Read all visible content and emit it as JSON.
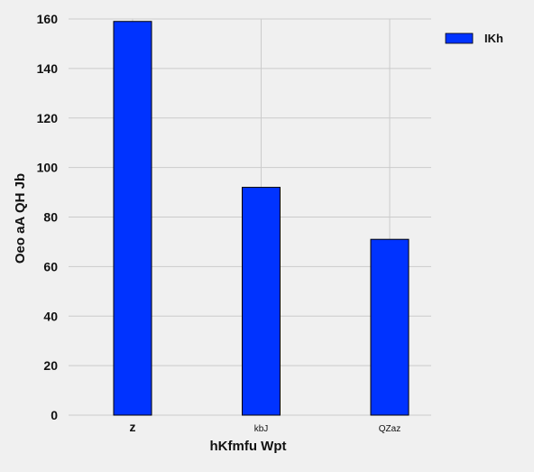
{
  "chart_data": {
    "type": "bar",
    "categories": [
      "z",
      "kbJ",
      "QZaz"
    ],
    "series": [
      {
        "name": "IKh",
        "values": [
          159,
          92,
          71
        ],
        "color": "#0033ff"
      }
    ],
    "xlabel": "hKfmfu Wpt",
    "ylabel": "Oeo aA QH  Jb",
    "ylim": [
      0,
      160
    ],
    "yticks": [
      0,
      20,
      40,
      60,
      80,
      100,
      120,
      140,
      160
    ],
    "grid": true,
    "legend_position": "top-right",
    "background": "#f0f0f0",
    "grid_color": "#cbcbcb",
    "bar_edge_color": "#000000"
  }
}
